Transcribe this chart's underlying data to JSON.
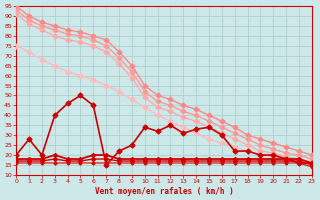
{
  "background_color": "#cde8e8",
  "grid_color": "#aacccc",
  "xlabel": "Vent moyen/en rafales ( km/h )",
  "xlabel_color": "#cc0000",
  "tick_color": "#cc0000",
  "xlim": [
    0,
    23
  ],
  "ylim": [
    10,
    95
  ],
  "yticks": [
    10,
    15,
    20,
    25,
    30,
    35,
    40,
    45,
    50,
    55,
    60,
    65,
    70,
    75,
    80,
    85,
    90,
    95
  ],
  "xticks": [
    0,
    1,
    2,
    3,
    4,
    5,
    6,
    7,
    8,
    9,
    10,
    11,
    12,
    13,
    14,
    15,
    16,
    17,
    18,
    19,
    20,
    21,
    22,
    23
  ],
  "lines": [
    {
      "x": [
        0,
        1,
        2,
        3,
        4,
        5,
        6,
        7,
        8,
        9,
        10,
        11,
        12,
        13,
        14,
        15,
        16,
        17,
        18,
        19,
        20,
        21,
        22,
        23
      ],
      "y": [
        95,
        90,
        87,
        85,
        83,
        82,
        80,
        78,
        72,
        65,
        55,
        50,
        48,
        45,
        43,
        40,
        37,
        34,
        30,
        28,
        26,
        24,
        22,
        20
      ],
      "color": "#ff8888",
      "lw": 1.0,
      "marker": "D",
      "ms": 2.5
    },
    {
      "x": [
        0,
        1,
        2,
        3,
        4,
        5,
        6,
        7,
        8,
        9,
        10,
        11,
        12,
        13,
        14,
        15,
        16,
        17,
        18,
        19,
        20,
        21,
        22,
        23
      ],
      "y": [
        93,
        88,
        85,
        83,
        81,
        80,
        78,
        75,
        69,
        62,
        52,
        47,
        45,
        42,
        40,
        37,
        34,
        31,
        28,
        25,
        23,
        21,
        20,
        18
      ],
      "color": "#ff9999",
      "lw": 1.0,
      "marker": "D",
      "ms": 2.5
    },
    {
      "x": [
        0,
        1,
        2,
        3,
        4,
        5,
        6,
        7,
        8,
        9,
        10,
        11,
        12,
        13,
        14,
        15,
        16,
        17,
        18,
        19,
        20,
        21,
        22,
        23
      ],
      "y": [
        91,
        86,
        83,
        80,
        78,
        77,
        75,
        72,
        66,
        59,
        49,
        44,
        42,
        39,
        37,
        34,
        31,
        28,
        25,
        22,
        21,
        19,
        18,
        16
      ],
      "color": "#ffaaaa",
      "lw": 1.0,
      "marker": "D",
      "ms": 2.5
    },
    {
      "x": [
        0,
        1,
        2,
        3,
        4,
        5,
        6,
        7,
        8,
        9,
        10,
        11,
        12,
        13,
        14,
        15,
        16,
        17,
        18,
        19,
        20,
        21,
        22,
        23
      ],
      "y": [
        75,
        72,
        68,
        65,
        62,
        60,
        58,
        55,
        52,
        48,
        44,
        40,
        37,
        34,
        31,
        28,
        26,
        24,
        22,
        20,
        19,
        18,
        17,
        16
      ],
      "color": "#ffbbbb",
      "lw": 1.0,
      "marker": "D",
      "ms": 2.5
    },
    {
      "x": [
        0,
        1,
        2,
        3,
        4,
        5,
        6,
        7,
        8,
        9,
        10,
        11,
        12,
        13,
        14,
        15,
        16,
        17,
        18,
        19,
        20,
        21,
        22,
        23
      ],
      "y": [
        20,
        28,
        20,
        40,
        46,
        50,
        45,
        15,
        22,
        25,
        34,
        32,
        35,
        31,
        33,
        34,
        30,
        22,
        22,
        20,
        20,
        18,
        16,
        16
      ],
      "color": "#cc0000",
      "lw": 1.2,
      "marker": "D",
      "ms": 2.5
    },
    {
      "x": [
        0,
        1,
        2,
        3,
        4,
        5,
        6,
        7,
        8,
        9,
        10,
        11,
        12,
        13,
        14,
        15,
        16,
        17,
        18,
        19,
        20,
        21,
        22,
        23
      ],
      "y": [
        18,
        18,
        18,
        20,
        18,
        18,
        20,
        20,
        18,
        18,
        18,
        18,
        18,
        18,
        18,
        18,
        18,
        18,
        18,
        18,
        18,
        18,
        18,
        16
      ],
      "color": "#cc0000",
      "lw": 1.3,
      "marker": "D",
      "ms": 2
    },
    {
      "x": [
        0,
        1,
        2,
        3,
        4,
        5,
        6,
        7,
        8,
        9,
        10,
        11,
        12,
        13,
        14,
        15,
        16,
        17,
        18,
        19,
        20,
        21,
        22,
        23
      ],
      "y": [
        17,
        17,
        17,
        18,
        17,
        17,
        18,
        18,
        17,
        17,
        17,
        17,
        17,
        17,
        17,
        17,
        17,
        17,
        17,
        17,
        17,
        17,
        17,
        15
      ],
      "color": "#cc0000",
      "lw": 1.0,
      "marker": "D",
      "ms": 2
    },
    {
      "x": [
        0,
        1,
        2,
        3,
        4,
        5,
        6,
        7,
        8,
        9,
        10,
        11,
        12,
        13,
        14,
        15,
        16,
        17,
        18,
        19,
        20,
        21,
        22,
        23
      ],
      "y": [
        16,
        16,
        16,
        16,
        16,
        16,
        16,
        16,
        16,
        16,
        16,
        16,
        16,
        16,
        16,
        16,
        16,
        16,
        16,
        16,
        16,
        16,
        16,
        14
      ],
      "color": "#dd0000",
      "lw": 0.8,
      "marker": "D",
      "ms": 1.5
    }
  ]
}
